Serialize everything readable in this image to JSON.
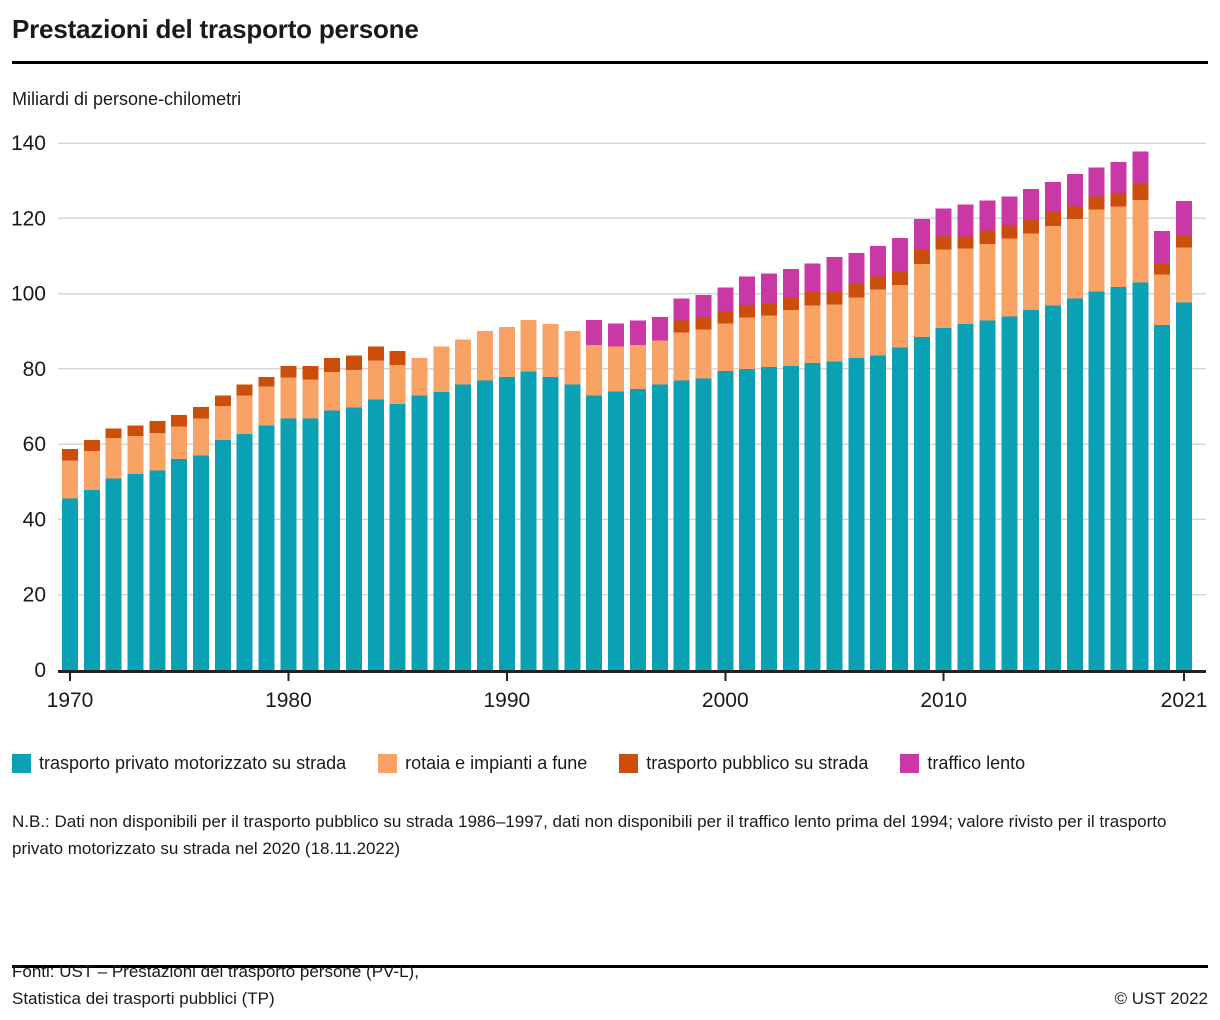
{
  "header": {
    "title": "Prestazioni del trasporto persone",
    "unit_label": "Miliardi di persone-chilometri"
  },
  "chart_data": {
    "type": "bar",
    "stacked": true,
    "title": "Prestazioni del trasporto persone",
    "ylabel": "Miliardi di persone-chilometri",
    "xlabel": "",
    "ylim": [
      0,
      140
    ],
    "ytick_step": 20,
    "grid": true,
    "legend_position": "bottom",
    "years": [
      1970,
      1971,
      1972,
      1973,
      1974,
      1975,
      1976,
      1977,
      1978,
      1979,
      1980,
      1981,
      1982,
      1983,
      1984,
      1985,
      1986,
      1987,
      1988,
      1989,
      1990,
      1991,
      1992,
      1993,
      1994,
      1995,
      1996,
      1997,
      1998,
      1999,
      2000,
      2001,
      2002,
      2003,
      2004,
      2005,
      2006,
      2007,
      2008,
      2009,
      2010,
      2011,
      2012,
      2013,
      2014,
      2015,
      2016,
      2017,
      2018,
      2019,
      2020,
      2021
    ],
    "xticks": [
      1970,
      1980,
      1990,
      2000,
      2010,
      2021
    ],
    "style": {
      "grid_color": "#d6d6d6",
      "axis_color": "#222222",
      "text_color": "#1a1a1a"
    },
    "series": [
      {
        "key": "private",
        "name": "trasporto privato motorizzato su strada",
        "color": "#0aa1b4",
        "values": [
          45.6,
          47.8,
          50.9,
          52.1,
          53.0,
          56.1,
          57.0,
          61.1,
          62.7,
          64.9,
          66.8,
          66.8,
          68.9,
          69.8,
          71.8,
          70.7,
          72.9,
          73.9,
          75.8,
          76.9,
          77.8,
          79.3,
          77.8,
          75.8,
          72.9,
          74.0,
          74.7,
          75.8,
          76.9,
          77.5,
          79.4,
          80.0,
          80.5,
          80.7,
          81.6,
          81.9,
          82.9,
          83.5,
          85.7,
          88.5,
          90.9,
          91.9,
          92.8,
          93.9,
          95.6,
          96.8,
          98.7,
          100.6,
          101.8,
          103.0,
          91.6,
          97.6
        ]
      },
      {
        "key": "rail",
        "name": "rotaia e impianti a fune",
        "color": "#f9a265",
        "values": [
          10.1,
          10.4,
          10.7,
          10.1,
          10.0,
          8.6,
          9.8,
          9.0,
          10.2,
          10.4,
          10.9,
          10.4,
          10.2,
          9.9,
          10.4,
          10.3,
          10.0,
          12.0,
          12.0,
          13.1,
          13.3,
          13.7,
          14.1,
          14.2,
          13.5,
          12.0,
          11.6,
          11.8,
          12.8,
          12.9,
          12.6,
          13.6,
          13.7,
          14.9,
          15.2,
          15.2,
          16.1,
          17.6,
          16.6,
          19.3,
          20.8,
          20.1,
          20.4,
          20.7,
          20.4,
          21.1,
          21.1,
          21.7,
          21.3,
          21.8,
          13.5,
          14.6
        ]
      },
      {
        "key": "bus",
        "name": "trasporto pubblico su strada",
        "color": "#cb4f0a",
        "values": [
          3.0,
          2.9,
          2.6,
          2.7,
          3.1,
          3.0,
          3.1,
          2.8,
          2.9,
          2.5,
          3.0,
          3.5,
          3.8,
          3.9,
          3.7,
          3.7,
          null,
          null,
          null,
          null,
          null,
          null,
          null,
          null,
          null,
          null,
          null,
          null,
          3.1,
          3.2,
          3.2,
          3.2,
          3.3,
          3.4,
          3.6,
          3.5,
          3.7,
          3.5,
          3.6,
          3.8,
          3.5,
          3.1,
          3.5,
          3.5,
          3.6,
          3.8,
          3.3,
          3.5,
          3.5,
          4.4,
          2.8,
          3.4
        ]
      },
      {
        "key": "slow",
        "name": "traffico lento",
        "color": "#ca38a5",
        "values": [
          null,
          null,
          null,
          null,
          null,
          null,
          null,
          null,
          null,
          null,
          null,
          null,
          null,
          null,
          null,
          null,
          null,
          null,
          null,
          null,
          null,
          null,
          null,
          null,
          6.6,
          6.0,
          6.6,
          6.2,
          5.9,
          6.0,
          6.4,
          7.8,
          7.8,
          7.5,
          7.6,
          9.1,
          8.1,
          8.1,
          8.9,
          8.2,
          7.4,
          8.5,
          8.0,
          7.7,
          8.2,
          8.0,
          8.7,
          7.7,
          8.3,
          8.6,
          8.7,
          9.0
        ]
      }
    ]
  },
  "note": "N.B.: Dati non disponibili per il trasporto pubblico su strada 1986–1997, dati non disponibili per il traffico lento prima del 1994; valore rivisto per il trasporto privato motorizzato su strada nel 2020 (18.11.2022)",
  "footer": {
    "source_line1": "Fonti: UST – Prestazioni del trasporto persone (PV-L),",
    "source_line2": "Statistica dei trasporti pubblici (TP)",
    "copyright": "© UST 2022"
  }
}
